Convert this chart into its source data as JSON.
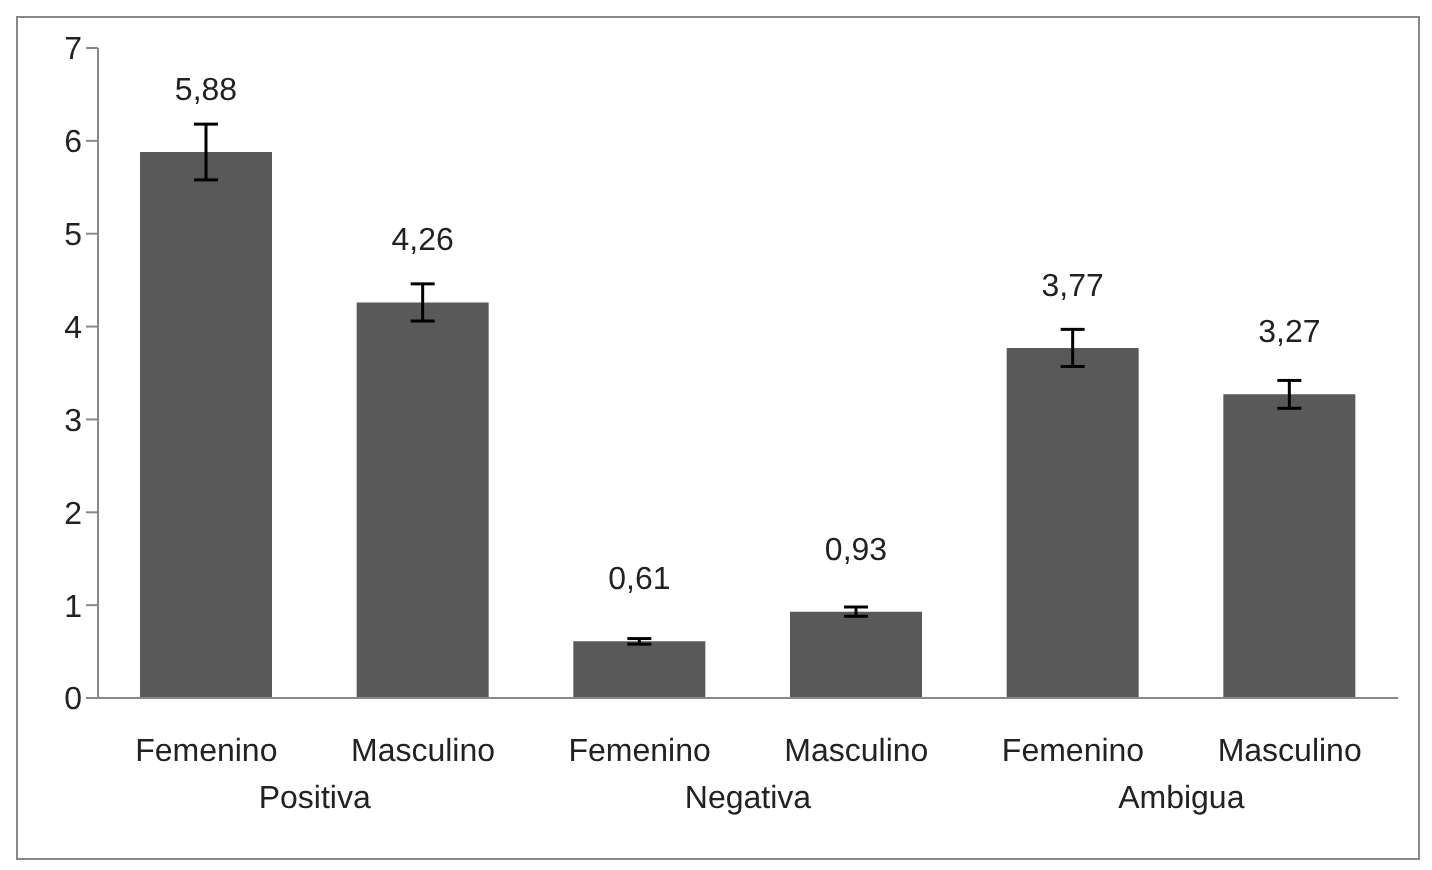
{
  "chart_data": {
    "type": "bar",
    "categories": [
      "Femenino",
      "Masculino",
      "Femenino",
      "Masculino",
      "Femenino",
      "Masculino"
    ],
    "values": [
      5.88,
      4.26,
      0.61,
      0.93,
      3.77,
      3.27
    ],
    "errors": [
      0.3,
      0.2,
      0.03,
      0.05,
      0.2,
      0.15
    ],
    "value_labels": [
      "5,88",
      "4,26",
      "0,61",
      "0,93",
      "3,77",
      "3,27"
    ],
    "color": "#595959",
    "ylim": [
      0,
      7
    ],
    "yticks": [
      0,
      1,
      2,
      3,
      4,
      5,
      6,
      7
    ],
    "annotations": [
      "Positiva",
      "Negativa",
      "Ambigua"
    ]
  }
}
